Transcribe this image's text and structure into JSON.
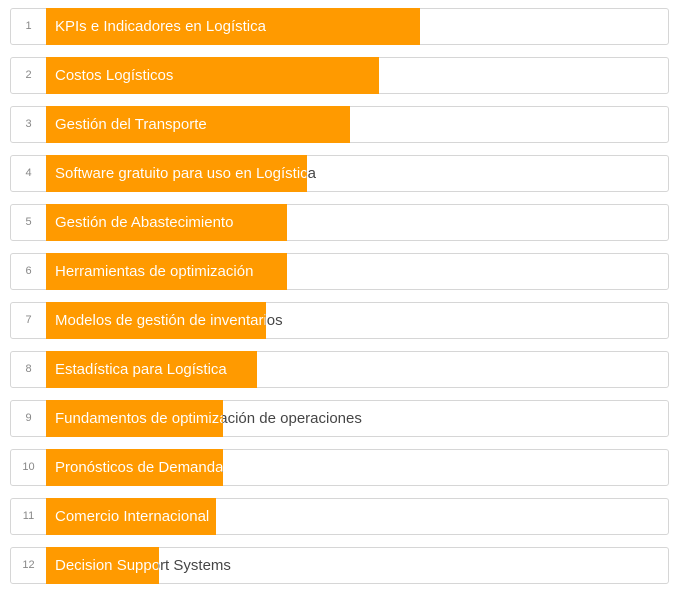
{
  "accent_color": "#ff9a00",
  "items": [
    {
      "rank": "1",
      "label": "KPIs e Indicadores en Logística",
      "value": 0.602
    },
    {
      "rank": "2",
      "label": "Costos Logísticos",
      "value": 0.535
    },
    {
      "rank": "3",
      "label": "Gestión del Transporte",
      "value": 0.488
    },
    {
      "rank": "4",
      "label": "Software gratuito para uso en Logística",
      "value": 0.419
    },
    {
      "rank": "5",
      "label": "Gestión de Abastecimiento",
      "value": 0.387
    },
    {
      "rank": "6",
      "label": "Herramientas de optimización",
      "value": 0.387
    },
    {
      "rank": "7",
      "label": "Modelos de gestión de inventarios",
      "value": 0.353
    },
    {
      "rank": "8",
      "label": "Estadística para Logística",
      "value": 0.34
    },
    {
      "rank": "9",
      "label": "Fundamentos de optimización de operaciones",
      "value": 0.284
    },
    {
      "rank": "10",
      "label": "Pronósticos de Demanda",
      "value": 0.284
    },
    {
      "rank": "11",
      "label": "Comercio Internacional",
      "value": 0.273
    },
    {
      "rank": "12",
      "label": "Decision Support Systems",
      "value": 0.181
    }
  ]
}
